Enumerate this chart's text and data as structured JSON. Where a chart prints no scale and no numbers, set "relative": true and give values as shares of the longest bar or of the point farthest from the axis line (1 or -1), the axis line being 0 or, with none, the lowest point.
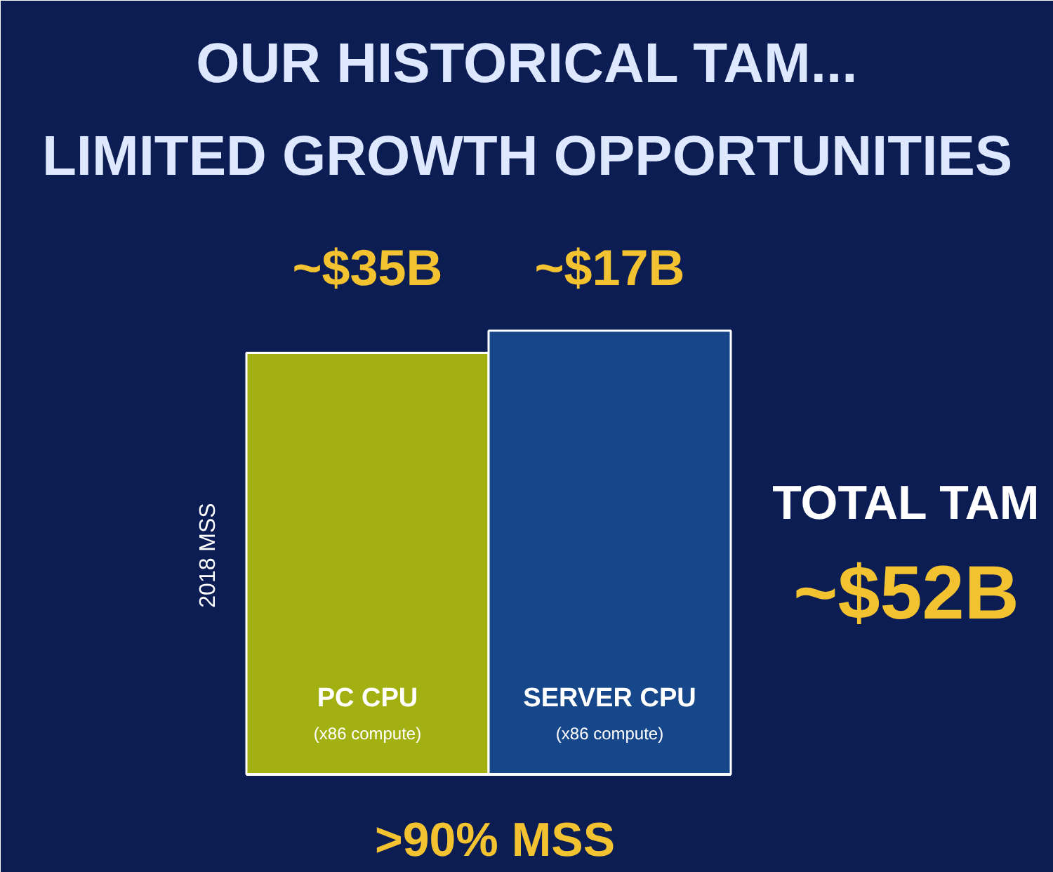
{
  "chart_data": {
    "type": "bar",
    "title": "OUR HISTORICAL TAM...\nLIMITED GROWTH OPPORTUNITIES",
    "ylabel": "2018 MSS",
    "categories": [
      "PC CPU\n(x86 compute)",
      "SERVER CPU\n(x86 compute)"
    ],
    "relative": true,
    "values": [
      0.95,
      1
    ],
    "colors": [
      "#a3b012",
      "#16478a"
    ],
    "annotations": [
      "~$35B",
      "~$17B",
      "TOTAL TAM",
      "~$52B",
      ">90% MSS"
    ]
  }
}
